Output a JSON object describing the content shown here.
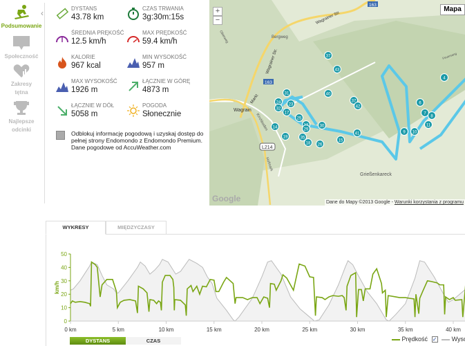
{
  "sidebar": {
    "items": [
      {
        "label": "Podsumowanie",
        "icon": "snowboard-icon",
        "active": true
      },
      {
        "label": "Społeczność",
        "icon": "speech-bubble-icon"
      },
      {
        "label": "Zakresy tętna",
        "icon": "heart-chart-icon"
      },
      {
        "label": "Najlepsze odcinki",
        "icon": "trophy-icon"
      }
    ]
  },
  "stats": [
    {
      "label": "DYSTANS",
      "value": "43.78 km",
      "icon": "ruler-icon",
      "color": "#6aaa3a"
    },
    {
      "label": "CZAS TRWANIA",
      "value": "3g:30m:15s",
      "icon": "stopwatch-icon",
      "color": "#1d7a3a"
    },
    {
      "label": "ŚREDNIA PRĘKOŚĆ",
      "value": "12.5 km/h",
      "icon": "speedometer-icon",
      "color": "#8a2a9a"
    },
    {
      "label": "MAX PRĘDKOŚĆ",
      "value": "59.4 km/h",
      "icon": "speedometer-max-icon",
      "color": "#d62a2a"
    },
    {
      "label": "KALORIE",
      "value": "967 kcal",
      "icon": "flame-icon",
      "color": "#d8541c"
    },
    {
      "label": "MIN WYSOKOŚĆ",
      "value": "957 m",
      "icon": "mountain-icon",
      "color": "#4a5fb0"
    },
    {
      "label": "MAX WYSOKOŚĆ",
      "value": "1926 m",
      "icon": "mountain-icon",
      "color": "#4a5fb0"
    },
    {
      "label": "ŁĄCZNIE W GÓRĘ",
      "value": "4873 m",
      "icon": "arrow-up-right-icon",
      "color": "#4caf6a"
    },
    {
      "label": "ŁĄCZNIE W DÓŁ",
      "value": "5058 m",
      "icon": "arrow-down-right-icon",
      "color": "#4caf6a"
    },
    {
      "label": "POGODA",
      "value": "Słonecznie",
      "icon": "sun-icon",
      "color": "#f0b020"
    }
  ],
  "promo": {
    "line1": "Odblokuj informację pogodową i uzyskaj dostęp do pełnej strony Endomondo z Endomondo Premium.",
    "line2": "Dane pogodowe od AccuWeather.com"
  },
  "map": {
    "type_button": "Mapa",
    "zoom_in": "+",
    "zoom_out": "−",
    "labels": {
      "town": "Wagrain",
      "kirchboden": "Kirchboden",
      "peak": "Grießenkareck",
      "bergweg": "Bergweg",
      "street": "Wagrainer Str.",
      "markt": "Markt",
      "road1": "163",
      "road2": "163",
      "road3": "L214",
      "hofmark": "Hofmark",
      "oberweg": "Oberweg",
      "feuersang": "Feuersang"
    },
    "logo": "Google",
    "attribution": "Dane do Mapy ©2013 Google - ",
    "terms_link": "Warunki korzystania z programu",
    "markers": [
      "37",
      "43",
      "40",
      "37",
      "42",
      "41",
      "6",
      "7",
      "8",
      "11",
      "10",
      "9",
      "4",
      "31",
      "23",
      "24",
      "32",
      "17",
      "25",
      "13",
      "30",
      "29",
      "14",
      "19",
      "35",
      "18",
      "15",
      "26"
    ],
    "route_color": "#5bc8e8",
    "marker_color": "#1a9aa8"
  },
  "tabs": [
    {
      "label": "WYKRESY",
      "active": true
    },
    {
      "label": "MIĘDZYCZASY"
    }
  ],
  "toggles": [
    {
      "label": "DYSTANS",
      "active": true
    },
    {
      "label": "CZAS"
    }
  ],
  "legend": {
    "speed": "Prędkość",
    "altitude": "Wysokość",
    "altitude_checked": "✓"
  },
  "chart_data": {
    "type": "line",
    "xlabel": "",
    "ylabel": "km/h",
    "xlim": [
      0,
      45
    ],
    "ylim": [
      0,
      50
    ],
    "yticks": [
      0,
      10,
      20,
      30,
      40,
      50
    ],
    "xticks": [
      0,
      5,
      10,
      15,
      20,
      25,
      30,
      35,
      40
    ],
    "xtick_labels": [
      "0 km",
      "5 km",
      "10 km",
      "15 km",
      "20 km",
      "25 km",
      "30 km",
      "35 km",
      "40 km"
    ],
    "speed_color": "#7aa614",
    "altitude_color": "#bbbbbb",
    "series": [
      {
        "name": "Prędkość",
        "points": [
          [
            0,
            13
          ],
          [
            0.2,
            15
          ],
          [
            0.5,
            14
          ],
          [
            1,
            14.5
          ],
          [
            1.5,
            14
          ],
          [
            2,
            13
          ],
          [
            2.1,
            11
          ],
          [
            2.2,
            44
          ],
          [
            2.6,
            42
          ],
          [
            2.8,
            40
          ],
          [
            3.1,
            18
          ],
          [
            3.3,
            27
          ],
          [
            3.8,
            31
          ],
          [
            4.4,
            31
          ],
          [
            4.8,
            22
          ],
          [
            4.9,
            10
          ],
          [
            5.2,
            14
          ],
          [
            5.6,
            15.5
          ],
          [
            6.2,
            16
          ],
          [
            6.8,
            15
          ],
          [
            7,
            6
          ],
          [
            7.1,
            26
          ],
          [
            7.6,
            24
          ],
          [
            8,
            21
          ],
          [
            8.2,
            7
          ],
          [
            8.3,
            16
          ],
          [
            8.7,
            15.5
          ],
          [
            9,
            13
          ],
          [
            9.2,
            15
          ],
          [
            9.4,
            14
          ],
          [
            9.5,
            8
          ],
          [
            9.6,
            29
          ],
          [
            9.9,
            34
          ],
          [
            10.4,
            34
          ],
          [
            10.7,
            31
          ],
          [
            10.8,
            25
          ],
          [
            10.85,
            8
          ],
          [
            10.9,
            16
          ],
          [
            11.5,
            15.5
          ],
          [
            12,
            12
          ],
          [
            12.1,
            4
          ],
          [
            12.2,
            24
          ],
          [
            12.6,
            26.5
          ],
          [
            12.8,
            22
          ],
          [
            13.2,
            26
          ],
          [
            13.5,
            20
          ],
          [
            13.8,
            26
          ],
          [
            14.2,
            25.5
          ],
          [
            14.6,
            31
          ],
          [
            15,
            30.5
          ],
          [
            15.2,
            22
          ],
          [
            15.5,
            22
          ],
          [
            16,
            29
          ],
          [
            16.3,
            32.5
          ],
          [
            17,
            28
          ],
          [
            17.2,
            13
          ],
          [
            17.3,
            17.5
          ],
          [
            18,
            17.5
          ],
          [
            18.5,
            16
          ],
          [
            19,
            17.5
          ],
          [
            19.5,
            17.5
          ],
          [
            19.8,
            13
          ],
          [
            20.2,
            18
          ],
          [
            20.6,
            17
          ],
          [
            20.8,
            10
          ],
          [
            20.9,
            28
          ],
          [
            21.3,
            27.5
          ],
          [
            21.5,
            23
          ],
          [
            22,
            30
          ],
          [
            22.2,
            34.5
          ],
          [
            22.6,
            32
          ],
          [
            23.3,
            23
          ],
          [
            23.9,
            42.5
          ],
          [
            24.5,
            41
          ],
          [
            25,
            33
          ],
          [
            25.4,
            32.5
          ],
          [
            25.6,
            4
          ],
          [
            25.7,
            18
          ],
          [
            26.3,
            17.5
          ],
          [
            26.6,
            16
          ],
          [
            27,
            18
          ],
          [
            27.4,
            19
          ],
          [
            28,
            18.5
          ],
          [
            28.4,
            19
          ],
          [
            28.6,
            17.5
          ],
          [
            28.8,
            8
          ],
          [
            28.9,
            26
          ],
          [
            29.3,
            34
          ],
          [
            29.8,
            36
          ],
          [
            29.9,
            3
          ],
          [
            30.1,
            23.5
          ],
          [
            30.4,
            23.5
          ],
          [
            30.6,
            15
          ],
          [
            30.8,
            24
          ],
          [
            31.3,
            24
          ],
          [
            31.6,
            35
          ],
          [
            32,
            39
          ],
          [
            32.5,
            28
          ],
          [
            32.6,
            21
          ],
          [
            32.9,
            23
          ],
          [
            33,
            3
          ],
          [
            33.2,
            19
          ],
          [
            34,
            18
          ],
          [
            34.4,
            17.5
          ],
          [
            35,
            17.5
          ],
          [
            35.4,
            17
          ],
          [
            35.9,
            16.5
          ],
          [
            36,
            3
          ],
          [
            36.1,
            20
          ],
          [
            36.4,
            5.5
          ],
          [
            36.5,
            17
          ],
          [
            36.8,
            22
          ],
          [
            37.3,
            30
          ],
          [
            37.7,
            29.5
          ],
          [
            38.3,
            28.5
          ],
          [
            38.6,
            27
          ],
          [
            39,
            27
          ],
          [
            39.1,
            5
          ],
          [
            39.2,
            18
          ],
          [
            39.6,
            16
          ],
          [
            40,
            17.5
          ],
          [
            40.2,
            15.5
          ],
          [
            40.9,
            16
          ],
          [
            41,
            3
          ],
          [
            41.3,
            28
          ],
          [
            41.7,
            33.5
          ],
          [
            41.9,
            23
          ],
          [
            42.2,
            22
          ],
          [
            42.5,
            26
          ],
          [
            43,
            30
          ]
        ]
      },
      {
        "name": "Wysokość",
        "points": [
          [
            0,
            23
          ],
          [
            0.3,
            24
          ],
          [
            1,
            30
          ],
          [
            2,
            41
          ],
          [
            2.2,
            44
          ],
          [
            2.8,
            42
          ],
          [
            3.3,
            34
          ],
          [
            3.8,
            27
          ],
          [
            4.5,
            24
          ],
          [
            4.8,
            21
          ],
          [
            5,
            21
          ],
          [
            6,
            30
          ],
          [
            7,
            40
          ],
          [
            7.3,
            44
          ],
          [
            7.8,
            41
          ],
          [
            8.3,
            35
          ],
          [
            8.8,
            38
          ],
          [
            9.3,
            42
          ],
          [
            9.6,
            46
          ],
          [
            10.2,
            44
          ],
          [
            11,
            35
          ],
          [
            11.5,
            37
          ],
          [
            12.4,
            46
          ],
          [
            13.2,
            43
          ],
          [
            13.8,
            40
          ],
          [
            14.3,
            33
          ],
          [
            14.8,
            28
          ],
          [
            15.3,
            17
          ],
          [
            16.3,
            8
          ],
          [
            17,
            1
          ],
          [
            17.2,
            0
          ],
          [
            17.6,
            3
          ],
          [
            19,
            17
          ],
          [
            20,
            33
          ],
          [
            20.6,
            44
          ],
          [
            21,
            45
          ],
          [
            22,
            35
          ],
          [
            23,
            18
          ],
          [
            24,
            9
          ],
          [
            25,
            3
          ],
          [
            25.5,
            0
          ],
          [
            26,
            1
          ],
          [
            27,
            12
          ],
          [
            28,
            27
          ],
          [
            28.7,
            40
          ],
          [
            29,
            45
          ],
          [
            29.5,
            42
          ],
          [
            30,
            35
          ],
          [
            31,
            22
          ],
          [
            32,
            13
          ],
          [
            33,
            1
          ],
          [
            33.3,
            0
          ],
          [
            34,
            5
          ],
          [
            35,
            13
          ],
          [
            36,
            32
          ],
          [
            36.5,
            45
          ],
          [
            37,
            44
          ],
          [
            38,
            33
          ],
          [
            39,
            20
          ],
          [
            39.5,
            14
          ],
          [
            40,
            16
          ],
          [
            41,
            22
          ],
          [
            41.5,
            25
          ],
          [
            41.8,
            43
          ],
          [
            42.2,
            41
          ],
          [
            42.5,
            35
          ],
          [
            43,
            30
          ]
        ]
      }
    ]
  }
}
